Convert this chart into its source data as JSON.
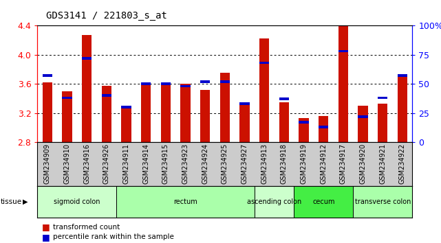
{
  "title": "GDS3141 / 221803_s_at",
  "samples": [
    "GSM234909",
    "GSM234910",
    "GSM234916",
    "GSM234926",
    "GSM234911",
    "GSM234914",
    "GSM234915",
    "GSM234923",
    "GSM234924",
    "GSM234925",
    "GSM234927",
    "GSM234913",
    "GSM234918",
    "GSM234919",
    "GSM234912",
    "GSM234917",
    "GSM234920",
    "GSM234921",
    "GSM234922"
  ],
  "red_values": [
    3.62,
    3.5,
    4.27,
    3.57,
    3.3,
    3.62,
    3.62,
    3.6,
    3.52,
    3.75,
    3.34,
    4.22,
    3.35,
    3.13,
    3.16,
    4.4,
    3.3,
    3.33,
    3.73
  ],
  "blue_values": [
    0.57,
    0.38,
    0.72,
    0.4,
    0.3,
    0.5,
    0.5,
    0.48,
    0.52,
    0.52,
    0.33,
    0.68,
    0.37,
    0.17,
    0.13,
    0.78,
    0.22,
    0.38,
    0.57
  ],
  "ymin": 2.8,
  "ymax": 4.4,
  "yticks": [
    2.8,
    3.2,
    3.6,
    4.0,
    4.4
  ],
  "y2ticks": [
    0,
    25,
    50,
    75,
    100
  ],
  "y2labels": [
    "0",
    "25",
    "50",
    "75",
    "100%"
  ],
  "tissue_groups": [
    {
      "label": "sigmoid colon",
      "start": 0,
      "end": 4,
      "color": "#ccffcc"
    },
    {
      "label": "rectum",
      "start": 4,
      "end": 11,
      "color": "#aaffaa"
    },
    {
      "label": "ascending colon",
      "start": 11,
      "end": 13,
      "color": "#ccffcc"
    },
    {
      "label": "cecum",
      "start": 13,
      "end": 16,
      "color": "#44ee44"
    },
    {
      "label": "transverse colon",
      "start": 16,
      "end": 19,
      "color": "#aaffaa"
    }
  ],
  "bar_color": "#cc1100",
  "blue_color": "#0000cc",
  "bar_width": 0.5,
  "xtick_bg": "#cccccc",
  "plot_bg": "#ffffff",
  "title_fontsize": 10,
  "tick_fontsize": 7,
  "ylabel_fontsize": 9
}
